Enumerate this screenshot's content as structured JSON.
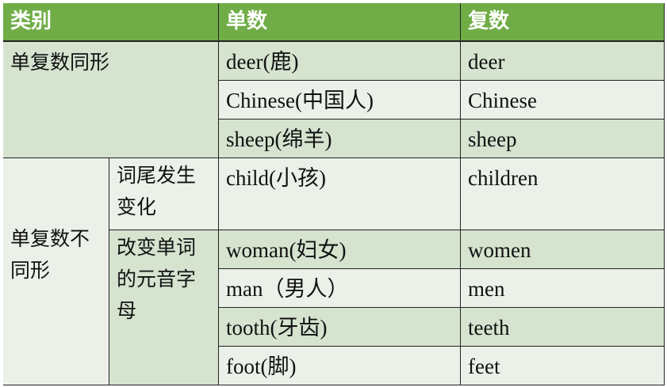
{
  "header": {
    "category": "类别",
    "singular": "单数",
    "plural": "复数"
  },
  "groups": {
    "same_form": "单复数同形",
    "different_form": "单复数不同形",
    "suffix_change": "词尾发生变化",
    "vowel_change": "改变单词的元音字母"
  },
  "rows": [
    {
      "singular": "deer(鹿)",
      "plural": "deer"
    },
    {
      "singular": "Chinese(中国人)",
      "plural": "Chinese"
    },
    {
      "singular": "sheep(绵羊)",
      "plural": "sheep"
    },
    {
      "singular": "child(小孩)",
      "plural": "children"
    },
    {
      "singular": "woman(妇女)",
      "plural": "women"
    },
    {
      "singular": "man（男人）",
      "plural": "men"
    },
    {
      "singular": "tooth(牙齿)",
      "plural": "teeth"
    },
    {
      "singular": "foot(脚)",
      "plural": "feet"
    }
  ],
  "colors": {
    "header": "#70ad47",
    "row_dark": "#d5e3cf",
    "row_light": "#ebf1e9"
  }
}
